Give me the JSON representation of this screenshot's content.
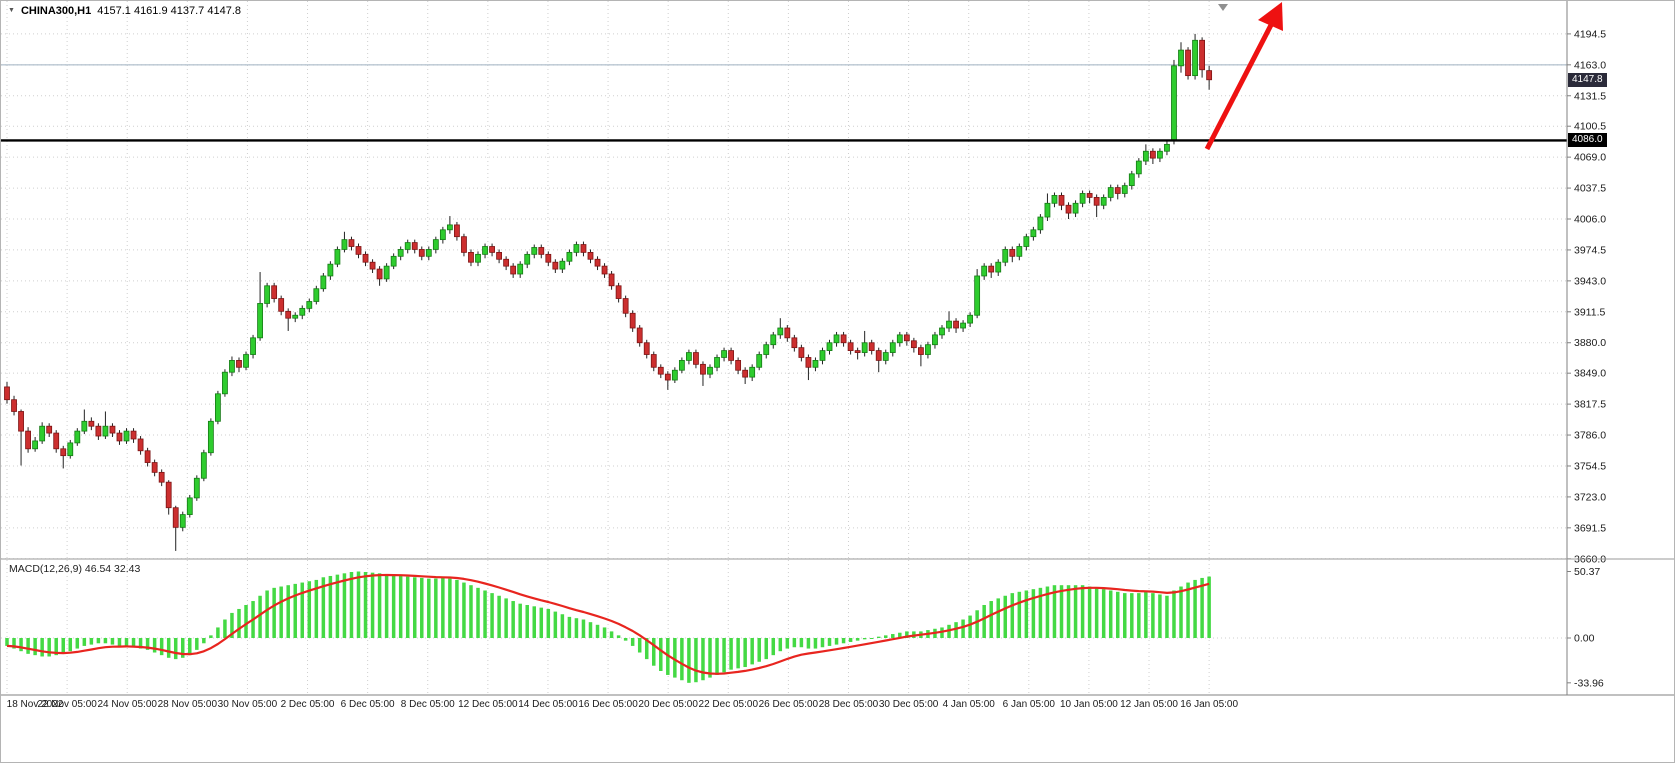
{
  "header": {
    "dropdown_icon": "▼",
    "title": "CHINA300,H1",
    "ohlc": "4157.1 4161.9 4137.7 4147.8"
  },
  "macd": {
    "label": "MACD(12,26,9) 46.54 32.43"
  },
  "price_axis": {
    "current_price_tag": "4147.8",
    "hline_tag": "4086.0"
  },
  "colors": {
    "bull": "#2ecc2e",
    "bull_stroke": "#157a15",
    "bear": "#cc2f2f",
    "bear_stroke": "#7c1414",
    "wick": "#222222",
    "macd_bar": "#44d944",
    "signal": "#e8251f",
    "arrow": "#ee1111",
    "hline": "#000000",
    "hline2": "#9fb0c0",
    "grid": "#cfcfcf",
    "axis_line": "#808080",
    "axis_text": "#1a1a1a",
    "shift_marker": "#909090"
  },
  "chart_data": {
    "type": "candlestick",
    "symbol": "CHINA300",
    "timeframe": "H1",
    "title": "CHINA300,H1",
    "current": {
      "open": 4157.1,
      "high": 4161.9,
      "low": 4137.7,
      "close": 4147.8
    },
    "price_axis_ticks": [
      4194.5,
      4163.0,
      4131.5,
      4100.5,
      4069.0,
      4037.5,
      4006.0,
      3974.5,
      3943.0,
      3911.5,
      3880.0,
      3849.0,
      3817.5,
      3786.0,
      3754.5,
      3723.0,
      3691.5,
      3660.0
    ],
    "ylim": [
      3660.0,
      4194.5
    ],
    "horizontal_line": 4086.0,
    "secondary_line": 4163.0,
    "time_ticks": [
      "18 Nov 2022",
      "22 Nov 05:00",
      "24 Nov 05:00",
      "28 Nov 05:00",
      "30 Nov 05:00",
      "2 Dec 05:00",
      "6 Dec 05:00",
      "8 Dec 05:00",
      "12 Dec 05:00",
      "14 Dec 05:00",
      "16 Dec 05:00",
      "20 Dec 05:00",
      "22 Dec 05:00",
      "26 Dec 05:00",
      "28 Dec 05:00",
      "30 Dec 05:00",
      "4 Jan 05:00",
      "6 Jan 05:00",
      "10 Jan 05:00",
      "12 Jan 05:00",
      "16 Jan 05:00"
    ],
    "candles": [
      [
        3835,
        3840,
        3818,
        3822
      ],
      [
        3822,
        3826,
        3806,
        3810
      ],
      [
        3810,
        3812,
        3755,
        3790
      ],
      [
        3790,
        3794,
        3768,
        3772
      ],
      [
        3772,
        3784,
        3769,
        3780
      ],
      [
        3780,
        3799,
        3777,
        3795
      ],
      [
        3795,
        3798,
        3784,
        3788
      ],
      [
        3788,
        3791,
        3768,
        3772
      ],
      [
        3772,
        3775,
        3752,
        3765
      ],
      [
        3765,
        3781,
        3762,
        3778
      ],
      [
        3778,
        3793,
        3775,
        3790
      ],
      [
        3790,
        3812,
        3787,
        3800
      ],
      [
        3800,
        3804,
        3791,
        3795
      ],
      [
        3795,
        3798,
        3781,
        3785
      ],
      [
        3785,
        3810,
        3782,
        3795
      ],
      [
        3795,
        3798,
        3784,
        3788
      ],
      [
        3788,
        3791,
        3776,
        3780
      ],
      [
        3780,
        3793,
        3777,
        3790
      ],
      [
        3790,
        3793,
        3778,
        3782
      ],
      [
        3782,
        3785,
        3766,
        3770
      ],
      [
        3770,
        3773,
        3754,
        3758
      ],
      [
        3758,
        3761,
        3744,
        3748
      ],
      [
        3748,
        3751,
        3734,
        3738
      ],
      [
        3738,
        3740,
        3705,
        3712
      ],
      [
        3712,
        3714,
        3668,
        3692
      ],
      [
        3692,
        3708,
        3688,
        3705
      ],
      [
        3705,
        3725,
        3702,
        3722
      ],
      [
        3722,
        3745,
        3719,
        3742
      ],
      [
        3742,
        3771,
        3739,
        3768
      ],
      [
        3768,
        3803,
        3765,
        3800
      ],
      [
        3800,
        3831,
        3797,
        3828
      ],
      [
        3828,
        3853,
        3825,
        3850
      ],
      [
        3850,
        3866,
        3846,
        3862
      ],
      [
        3862,
        3865,
        3850,
        3855
      ],
      [
        3855,
        3871,
        3852,
        3868
      ],
      [
        3868,
        3888,
        3864,
        3885
      ],
      [
        3885,
        3952,
        3882,
        3920
      ],
      [
        3920,
        3941,
        3916,
        3938
      ],
      [
        3938,
        3941,
        3921,
        3925
      ],
      [
        3925,
        3928,
        3908,
        3912
      ],
      [
        3912,
        3915,
        3892,
        3905
      ],
      [
        3905,
        3911,
        3901,
        3908
      ],
      [
        3908,
        3918,
        3904,
        3915
      ],
      [
        3915,
        3925,
        3911,
        3922
      ],
      [
        3922,
        3938,
        3919,
        3935
      ],
      [
        3935,
        3951,
        3932,
        3948
      ],
      [
        3948,
        3963,
        3944,
        3960
      ],
      [
        3960,
        3978,
        3957,
        3975
      ],
      [
        3975,
        3993,
        3972,
        3985
      ],
      [
        3985,
        3988,
        3974,
        3978
      ],
      [
        3978,
        3981,
        3966,
        3970
      ],
      [
        3970,
        3973,
        3958,
        3962
      ],
      [
        3962,
        3965,
        3951,
        3955
      ],
      [
        3955,
        3958,
        3938,
        3945
      ],
      [
        3945,
        3961,
        3942,
        3958
      ],
      [
        3958,
        3971,
        3955,
        3968
      ],
      [
        3968,
        3978,
        3964,
        3975
      ],
      [
        3975,
        3985,
        3971,
        3982
      ],
      [
        3982,
        3985,
        3971,
        3975
      ],
      [
        3975,
        3978,
        3964,
        3968
      ],
      [
        3968,
        3978,
        3964,
        3975
      ],
      [
        3975,
        3988,
        3971,
        3985
      ],
      [
        3985,
        3998,
        3981,
        3995
      ],
      [
        3995,
        4009,
        3991,
        4000
      ],
      [
        4000,
        4003,
        3984,
        3988
      ],
      [
        3988,
        3991,
        3968,
        3972
      ],
      [
        3972,
        3975,
        3958,
        3962
      ],
      [
        3962,
        3973,
        3958,
        3970
      ],
      [
        3970,
        3981,
        3966,
        3978
      ],
      [
        3978,
        3981,
        3968,
        3972
      ],
      [
        3972,
        3975,
        3961,
        3965
      ],
      [
        3965,
        3968,
        3954,
        3958
      ],
      [
        3958,
        3961,
        3946,
        3950
      ],
      [
        3950,
        3963,
        3946,
        3960
      ],
      [
        3960,
        3973,
        3956,
        3970
      ],
      [
        3970,
        3980,
        3966,
        3977
      ],
      [
        3977,
        3980,
        3966,
        3970
      ],
      [
        3970,
        3973,
        3958,
        3962
      ],
      [
        3962,
        3965,
        3951,
        3955
      ],
      [
        3955,
        3966,
        3951,
        3963
      ],
      [
        3963,
        3975,
        3959,
        3972
      ],
      [
        3972,
        3983,
        3968,
        3980
      ],
      [
        3980,
        3983,
        3968,
        3972
      ],
      [
        3972,
        3975,
        3961,
        3965
      ],
      [
        3965,
        3968,
        3954,
        3958
      ],
      [
        3958,
        3961,
        3946,
        3950
      ],
      [
        3950,
        3953,
        3934,
        3938
      ],
      [
        3938,
        3941,
        3921,
        3925
      ],
      [
        3925,
        3928,
        3906,
        3910
      ],
      [
        3910,
        3913,
        3891,
        3895
      ],
      [
        3895,
        3898,
        3876,
        3880
      ],
      [
        3880,
        3883,
        3864,
        3868
      ],
      [
        3868,
        3871,
        3851,
        3855
      ],
      [
        3855,
        3858,
        3844,
        3848
      ],
      [
        3848,
        3851,
        3832,
        3842
      ],
      [
        3842,
        3855,
        3839,
        3852
      ],
      [
        3852,
        3865,
        3849,
        3862
      ],
      [
        3862,
        3873,
        3858,
        3870
      ],
      [
        3870,
        3873,
        3854,
        3858
      ],
      [
        3858,
        3861,
        3836,
        3848
      ],
      [
        3848,
        3858,
        3844,
        3855
      ],
      [
        3855,
        3868,
        3851,
        3865
      ],
      [
        3865,
        3875,
        3861,
        3872
      ],
      [
        3872,
        3875,
        3858,
        3862
      ],
      [
        3862,
        3865,
        3848,
        3852
      ],
      [
        3852,
        3855,
        3838,
        3845
      ],
      [
        3845,
        3858,
        3841,
        3855
      ],
      [
        3855,
        3871,
        3852,
        3868
      ],
      [
        3868,
        3881,
        3864,
        3878
      ],
      [
        3878,
        3891,
        3874,
        3888
      ],
      [
        3888,
        3905,
        3884,
        3895
      ],
      [
        3895,
        3898,
        3881,
        3885
      ],
      [
        3885,
        3888,
        3871,
        3875
      ],
      [
        3875,
        3878,
        3861,
        3865
      ],
      [
        3865,
        3868,
        3842,
        3855
      ],
      [
        3855,
        3865,
        3851,
        3862
      ],
      [
        3862,
        3875,
        3858,
        3872
      ],
      [
        3872,
        3883,
        3868,
        3880
      ],
      [
        3880,
        3891,
        3876,
        3888
      ],
      [
        3888,
        3891,
        3876,
        3880
      ],
      [
        3880,
        3883,
        3868,
        3872
      ],
      [
        3872,
        3875,
        3863,
        3870
      ],
      [
        3870,
        3892,
        3866,
        3880
      ],
      [
        3880,
        3883,
        3868,
        3872
      ],
      [
        3872,
        3875,
        3850,
        3862
      ],
      [
        3862,
        3873,
        3858,
        3870
      ],
      [
        3870,
        3883,
        3866,
        3880
      ],
      [
        3880,
        3891,
        3876,
        3888
      ],
      [
        3888,
        3891,
        3877,
        3882
      ],
      [
        3882,
        3885,
        3870,
        3875
      ],
      [
        3875,
        3878,
        3856,
        3868
      ],
      [
        3868,
        3881,
        3864,
        3878
      ],
      [
        3878,
        3891,
        3874,
        3888
      ],
      [
        3888,
        3898,
        3884,
        3895
      ],
      [
        3895,
        3912,
        3891,
        3902
      ],
      [
        3902,
        3905,
        3890,
        3895
      ],
      [
        3895,
        3903,
        3891,
        3900
      ],
      [
        3900,
        3911,
        3896,
        3908
      ],
      [
        3908,
        3955,
        3905,
        3948
      ],
      [
        3948,
        3961,
        3944,
        3958
      ],
      [
        3958,
        3961,
        3946,
        3952
      ],
      [
        3952,
        3965,
        3948,
        3962
      ],
      [
        3962,
        3978,
        3958,
        3975
      ],
      [
        3975,
        3978,
        3962,
        3968
      ],
      [
        3968,
        3981,
        3964,
        3978
      ],
      [
        3978,
        3991,
        3974,
        3988
      ],
      [
        3988,
        3998,
        3984,
        3995
      ],
      [
        3995,
        4011,
        3991,
        4008
      ],
      [
        4008,
        4032,
        4004,
        4022
      ],
      [
        4022,
        4033,
        4018,
        4030
      ],
      [
        4030,
        4033,
        4015,
        4020
      ],
      [
        4020,
        4023,
        4006,
        4012
      ],
      [
        4012,
        4025,
        4008,
        4022
      ],
      [
        4022,
        4035,
        4018,
        4032
      ],
      [
        4032,
        4035,
        4022,
        4028
      ],
      [
        4028,
        4031,
        4008,
        4020
      ],
      [
        4020,
        4031,
        4016,
        4028
      ],
      [
        4028,
        4041,
        4024,
        4038
      ],
      [
        4038,
        4041,
        4026,
        4032
      ],
      [
        4032,
        4043,
        4028,
        4040
      ],
      [
        4040,
        4055,
        4036,
        4052
      ],
      [
        4052,
        4068,
        4048,
        4065
      ],
      [
        4065,
        4082,
        4061,
        4075
      ],
      [
        4075,
        4078,
        4062,
        4068
      ],
      [
        4068,
        4078,
        4064,
        4075
      ],
      [
        4075,
        4085,
        4071,
        4082
      ],
      [
        4086,
        4168,
        4082,
        4162
      ],
      [
        4162,
        4186,
        4155,
        4178
      ],
      [
        4178,
        4181,
        4148,
        4152
      ],
      [
        4152,
        4194.5,
        4148,
        4188
      ],
      [
        4188,
        4191,
        4150,
        4158
      ],
      [
        4157.1,
        4161.9,
        4137.7,
        4147.8
      ]
    ],
    "macd": {
      "params": [
        12,
        26,
        9
      ],
      "main_current": 46.54,
      "signal_current": 32.43,
      "axis_ticks": [
        50.37,
        0.0,
        -33.96
      ],
      "histogram": [
        -6,
        -8,
        -10,
        -12,
        -13,
        -14,
        -14,
        -13,
        -12,
        -10,
        -8,
        -6,
        -5,
        -4,
        -4,
        -5,
        -6,
        -6,
        -7,
        -8,
        -9,
        -11,
        -13,
        -15,
        -16,
        -15,
        -13,
        -9,
        -4,
        2,
        8,
        14,
        19,
        22,
        25,
        28,
        32,
        36,
        38,
        39,
        40,
        41,
        42,
        43,
        44,
        46,
        47,
        48,
        49,
        50,
        50.37,
        50,
        49.5,
        49,
        48,
        47.5,
        47,
        46.5,
        46,
        45.5,
        45,
        45,
        45.5,
        45,
        44,
        42,
        40,
        38,
        36,
        34,
        32,
        30,
        28,
        26,
        25,
        24,
        23,
        22,
        20,
        18,
        16,
        15,
        14,
        12,
        10,
        8,
        5,
        2,
        -2,
        -6,
        -11,
        -16,
        -21,
        -25,
        -28,
        -30,
        -32,
        -33.96,
        -33.5,
        -32,
        -30,
        -28,
        -26,
        -24,
        -23,
        -22,
        -20,
        -18,
        -16,
        -13,
        -10,
        -8,
        -7,
        -7,
        -8,
        -8,
        -7,
        -6,
        -5,
        -4,
        -3,
        -2,
        -1,
        0,
        1,
        2,
        3,
        4,
        5,
        5,
        5,
        6,
        7,
        8,
        10,
        12,
        14,
        17,
        21,
        25,
        28,
        30,
        32,
        34,
        35,
        36,
        37,
        38,
        39,
        40,
        40,
        40,
        40,
        40,
        39,
        38,
        37,
        36,
        35,
        34,
        34,
        34,
        35,
        34,
        33,
        32,
        36,
        39,
        42,
        44,
        45.5,
        46.54
      ]
    }
  }
}
